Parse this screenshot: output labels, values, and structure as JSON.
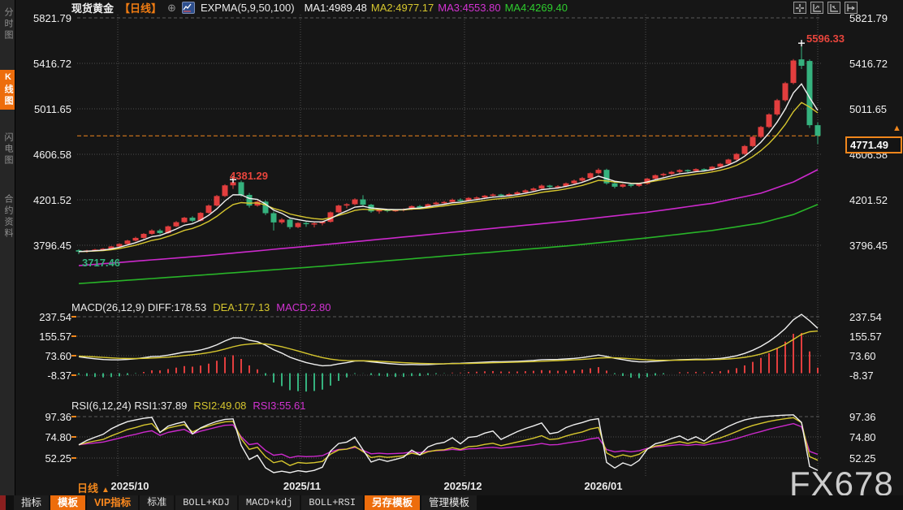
{
  "sidebar": {
    "items": [
      {
        "label": "分时图",
        "active": false
      },
      {
        "label": "K线图",
        "active": true
      },
      {
        "label": "闪电图",
        "active": false
      },
      {
        "label": "合约资料",
        "active": false
      }
    ]
  },
  "header": {
    "title": "现货黄金",
    "period_tag": "【日线】",
    "indicator_label": "EXPMA(5,9,50,100)",
    "ma_values": [
      {
        "label": "MA1:4989.48",
        "color": "#f2f2f2"
      },
      {
        "label": "MA2:4977.17",
        "color": "#d6c62e"
      },
      {
        "label": "MA3:4553.80",
        "color": "#d233d2"
      },
      {
        "label": "MA4:4269.40",
        "color": "#2ecc2e"
      }
    ]
  },
  "icons": {
    "circle_plus": "⊕",
    "up_arrow": "▲"
  },
  "main_axis": {
    "ticks": [
      "5821.79",
      "5416.72",
      "5011.65",
      "4606.58",
      "4201.52",
      "3796.45"
    ]
  },
  "macd_panel": {
    "ticks": [
      "237.54",
      "155.57",
      "73.60",
      "-8.37"
    ],
    "header_parts": [
      {
        "text": "MACD(26,12,9) DIFF:178.53",
        "color": "#e8e8e8"
      },
      {
        "text": "DEA:177.13",
        "color": "#d6c62e"
      },
      {
        "text": "MACD:2.80",
        "color": "#d233d2"
      }
    ]
  },
  "rsi_panel": {
    "ticks": [
      "97.36",
      "74.80",
      "52.25"
    ],
    "header_parts": [
      {
        "text": "RSI(6,12,24) RSI1:37.89",
        "color": "#e8e8e8"
      },
      {
        "text": "RSI2:49.08",
        "color": "#d6c62e"
      },
      {
        "text": "RSI3:55.61",
        "color": "#d233d2"
      }
    ]
  },
  "annotations": {
    "peak": "5596.33",
    "local_peak": "4381.29",
    "low": "3717.46",
    "current_price": "4771.49"
  },
  "xaxis": {
    "period_label": "日线",
    "months": [
      "2025/10",
      "2025/11",
      "2025/12",
      "2026/01"
    ]
  },
  "bottom_toolbar": {
    "items": [
      {
        "label": "指标",
        "style": "plain"
      },
      {
        "label": "模板",
        "style": "orange"
      },
      {
        "label": "VIP指标",
        "style": "vip"
      },
      {
        "label": "标准",
        "style": "preset"
      },
      {
        "label": "BOLL+KDJ",
        "style": "preset"
      },
      {
        "label": "MACD+kdj",
        "style": "preset"
      },
      {
        "label": "BOLL+RSI",
        "style": "preset"
      },
      {
        "label": "另存模板",
        "style": "orange"
      },
      {
        "label": "管理模板",
        "style": "plain"
      }
    ]
  },
  "watermark": "FX678",
  "colors": {
    "up": "#e23e3e",
    "down": "#35b27e",
    "accent_orange": "#f0861c",
    "ma1": "#f2f2f2",
    "ma2": "#d6c62e",
    "ma3": "#cc29cc",
    "ma4": "#28b428",
    "grid": "#4d4d4d",
    "grid_dash": "#5a5a5a"
  },
  "chart_data": {
    "type": "candlestick",
    "title": "现货黄金 日线",
    "current_price": 4771.49,
    "price_ticks": [
      5821.79,
      5416.72,
      5011.65,
      4606.58,
      4201.52,
      3796.45
    ],
    "macd_ticks": [
      237.54,
      155.57,
      73.6,
      -8.37
    ],
    "rsi_ticks": [
      97.36,
      74.8,
      52.25
    ],
    "months": [
      "2025/10",
      "2025/11",
      "2025/12",
      "2026/01"
    ],
    "ema_periods": {
      "ma1": 5,
      "ma2": 9
    },
    "cross_marker_indices": [
      19,
      89
    ],
    "candles": [
      [
        3752,
        3760,
        3717,
        3740
      ],
      [
        3740,
        3756,
        3730,
        3750
      ],
      [
        3750,
        3765,
        3744,
        3758
      ],
      [
        3758,
        3772,
        3750,
        3766
      ],
      [
        3766,
        3790,
        3758,
        3786
      ],
      [
        3786,
        3815,
        3780,
        3808
      ],
      [
        3808,
        3845,
        3800,
        3838
      ],
      [
        3838,
        3872,
        3830,
        3862
      ],
      [
        3862,
        3905,
        3855,
        3898
      ],
      [
        3898,
        3938,
        3890,
        3928
      ],
      [
        3928,
        3942,
        3892,
        3905
      ],
      [
        3905,
        3972,
        3898,
        3965
      ],
      [
        3965,
        4012,
        3958,
        4002
      ],
      [
        4002,
        4050,
        3995,
        4042
      ],
      [
        4042,
        4055,
        4002,
        4015
      ],
      [
        4015,
        4092,
        4008,
        4085
      ],
      [
        4085,
        4160,
        4078,
        4150
      ],
      [
        4150,
        4245,
        4142,
        4235
      ],
      [
        4235,
        4340,
        4226,
        4330
      ],
      [
        4330,
        4381.29,
        4298,
        4358
      ],
      [
        4358,
        4372,
        4228,
        4245
      ],
      [
        4245,
        4262,
        4132,
        4150
      ],
      [
        4150,
        4195,
        4140,
        4185
      ],
      [
        4185,
        4198,
        4065,
        4082
      ],
      [
        4082,
        4098,
        3928,
        4000
      ],
      [
        4000,
        4038,
        3985,
        4025
      ],
      [
        4025,
        4035,
        3940,
        3958
      ],
      [
        3958,
        4002,
        3948,
        3995
      ],
      [
        3995,
        4005,
        3960,
        3985
      ],
      [
        3985,
        4000,
        3956,
        3992
      ],
      [
        3992,
        4012,
        3974,
        4005
      ],
      [
        4005,
        4098,
        3998,
        4090
      ],
      [
        4090,
        4158,
        4084,
        4150
      ],
      [
        4150,
        4172,
        4126,
        4162
      ],
      [
        4162,
        4215,
        4154,
        4205
      ],
      [
        4205,
        4242,
        4146,
        4158
      ],
      [
        4158,
        4165,
        4086,
        4098
      ],
      [
        4098,
        4122,
        4078,
        4112
      ],
      [
        4112,
        4120,
        4090,
        4102
      ],
      [
        4102,
        4118,
        4094,
        4110
      ],
      [
        4110,
        4125,
        4098,
        4118
      ],
      [
        4118,
        4152,
        4110,
        4145
      ],
      [
        4145,
        4155,
        4120,
        4132
      ],
      [
        4132,
        4168,
        4126,
        4162
      ],
      [
        4162,
        4185,
        4148,
        4176
      ],
      [
        4176,
        4192,
        4163,
        4182
      ],
      [
        4182,
        4212,
        4174,
        4202
      ],
      [
        4202,
        4215,
        4180,
        4192
      ],
      [
        4192,
        4225,
        4184,
        4218
      ],
      [
        4218,
        4232,
        4204,
        4222
      ],
      [
        4222,
        4245,
        4210,
        4238
      ],
      [
        4238,
        4258,
        4226,
        4248
      ],
      [
        4248,
        4255,
        4226,
        4238
      ],
      [
        4238,
        4262,
        4230,
        4252
      ],
      [
        4252,
        4278,
        4244,
        4268
      ],
      [
        4268,
        4295,
        4258,
        4285
      ],
      [
        4285,
        4312,
        4276,
        4302
      ],
      [
        4302,
        4338,
        4294,
        4328
      ],
      [
        4328,
        4335,
        4303,
        4315
      ],
      [
        4315,
        4332,
        4300,
        4322
      ],
      [
        4322,
        4355,
        4313,
        4348
      ],
      [
        4348,
        4382,
        4338,
        4372
      ],
      [
        4372,
        4405,
        4360,
        4395
      ],
      [
        4395,
        4445,
        4386,
        4438
      ],
      [
        4438,
        4482,
        4428,
        4468
      ],
      [
        4468,
        4478,
        4336,
        4348
      ],
      [
        4348,
        4362,
        4303,
        4318
      ],
      [
        4318,
        4345,
        4308,
        4338
      ],
      [
        4338,
        4348,
        4313,
        4326
      ],
      [
        4326,
        4352,
        4316,
        4344
      ],
      [
        4344,
        4398,
        4336,
        4390
      ],
      [
        4390,
        4428,
        4380,
        4420
      ],
      [
        4420,
        4442,
        4406,
        4432
      ],
      [
        4432,
        4458,
        4420,
        4450
      ],
      [
        4450,
        4475,
        4438,
        4466
      ],
      [
        4466,
        4472,
        4443,
        4458
      ],
      [
        4458,
        4482,
        4448,
        4475
      ],
      [
        4475,
        4482,
        4453,
        4468
      ],
      [
        4468,
        4502,
        4458,
        4496
      ],
      [
        4496,
        4530,
        4486,
        4522
      ],
      [
        4522,
        4568,
        4513,
        4560
      ],
      [
        4560,
        4618,
        4550,
        4610
      ],
      [
        4610,
        4690,
        4600,
        4680
      ],
      [
        4680,
        4772,
        4670,
        4762
      ],
      [
        4762,
        4860,
        4750,
        4850
      ],
      [
        4850,
        4972,
        4840,
        4962
      ],
      [
        4962,
        5100,
        4950,
        5088
      ],
      [
        5088,
        5252,
        5076,
        5240
      ],
      [
        5242,
        5455,
        5230,
        5442
      ],
      [
        5452,
        5596.33,
        5366,
        5395
      ],
      [
        5438,
        5452,
        4842,
        4866
      ],
      [
        4866,
        4890,
        4698,
        4771.49
      ]
    ],
    "ma3_waypoints": [
      [
        0,
        3615
      ],
      [
        15,
        3700
      ],
      [
        30,
        3800
      ],
      [
        45,
        3905
      ],
      [
        60,
        4010
      ],
      [
        70,
        4090
      ],
      [
        78,
        4170
      ],
      [
        84,
        4260
      ],
      [
        88,
        4360
      ],
      [
        91,
        4470
      ]
    ],
    "ma4_waypoints": [
      [
        0,
        3455
      ],
      [
        15,
        3530
      ],
      [
        30,
        3610
      ],
      [
        45,
        3700
      ],
      [
        60,
        3790
      ],
      [
        70,
        3862
      ],
      [
        78,
        3928
      ],
      [
        84,
        3994
      ],
      [
        88,
        4070
      ],
      [
        91,
        4160
      ]
    ],
    "macd": {
      "diff": 178.53,
      "dea": 177.13,
      "macd": 2.8
    },
    "rsi": {
      "rsi1": 37.89,
      "rsi2": 49.08,
      "rsi3": 55.61
    }
  }
}
